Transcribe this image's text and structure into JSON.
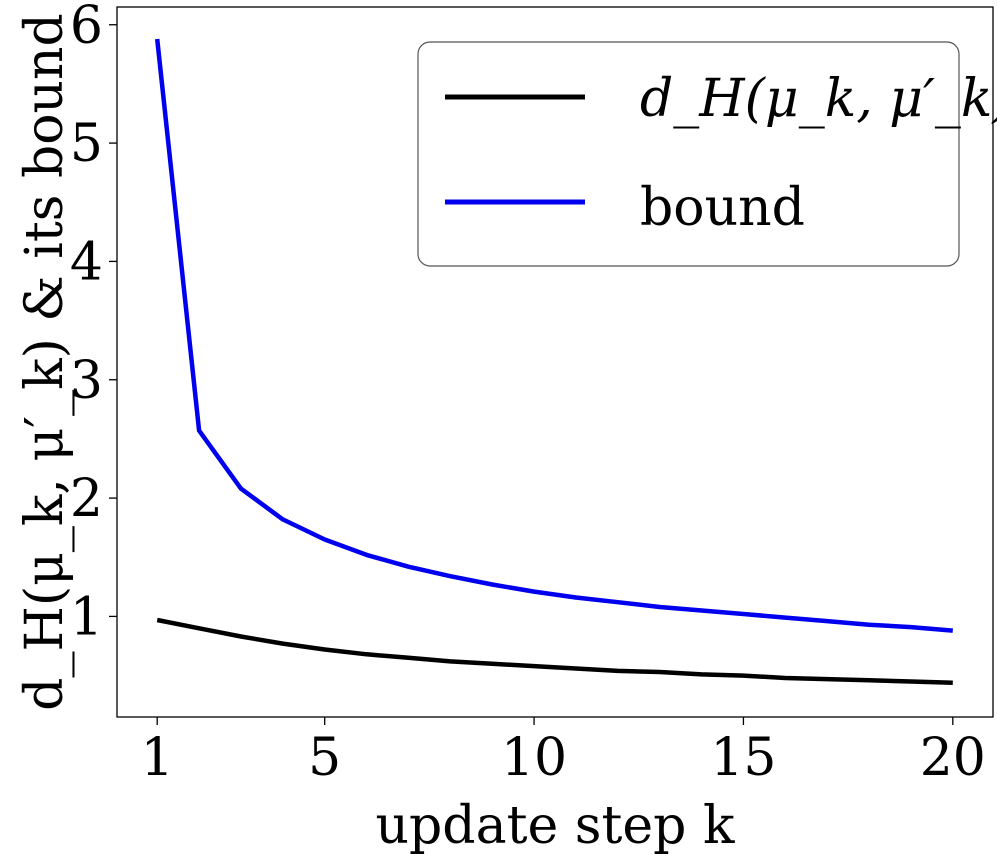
{
  "chart_data": {
    "type": "line",
    "title": "",
    "xlabel": "update step k",
    "ylabel": "d_H(μ_k, μ′_k) & its bound",
    "xlim": [
      0.04,
      20.96
    ],
    "ylim": [
      0.15,
      6.15
    ],
    "xticks": [
      1,
      5,
      10,
      15,
      20
    ],
    "yticks": [
      1,
      2,
      3,
      4,
      5,
      6
    ],
    "grid": false,
    "legend_position": "top-right",
    "series": [
      {
        "name": "d_H(μ_k, μ′_k)",
        "color": "#000000",
        "x": [
          1,
          2,
          3,
          4,
          5,
          6,
          7,
          8,
          9,
          10,
          11,
          12,
          13,
          14,
          15,
          16,
          17,
          18,
          19,
          20
        ],
        "y": [
          0.97,
          0.9,
          0.83,
          0.77,
          0.72,
          0.68,
          0.65,
          0.62,
          0.6,
          0.58,
          0.56,
          0.54,
          0.53,
          0.51,
          0.5,
          0.48,
          0.47,
          0.46,
          0.45,
          0.44
        ]
      },
      {
        "name": "bound",
        "color": "#0000ee",
        "x": [
          1,
          2,
          3,
          4,
          5,
          6,
          7,
          8,
          9,
          10,
          11,
          12,
          13,
          14,
          15,
          16,
          17,
          18,
          19,
          20
        ],
        "y": [
          5.88,
          2.57,
          2.08,
          1.82,
          1.65,
          1.52,
          1.42,
          1.34,
          1.27,
          1.21,
          1.16,
          1.12,
          1.08,
          1.05,
          1.02,
          0.99,
          0.96,
          0.93,
          0.91,
          0.88
        ]
      }
    ]
  }
}
